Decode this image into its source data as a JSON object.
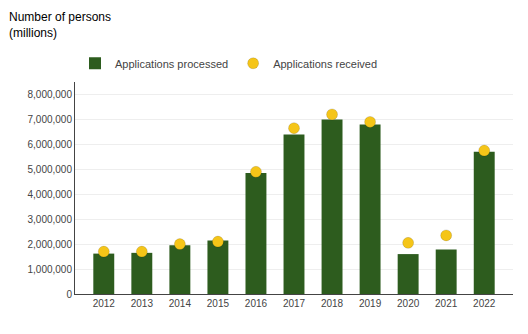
{
  "chart_data": {
    "type": "bar",
    "annotations": [
      "Number of persons",
      "(millions)"
    ],
    "categories": [
      "2012",
      "2013",
      "2014",
      "2015",
      "2016",
      "2017",
      "2018",
      "2019",
      "2020",
      "2021",
      "2022"
    ],
    "series": [
      {
        "name": "Applications processed",
        "type": "bar",
        "color": "#2d5c1e",
        "values": [
          1620000,
          1650000,
          1950000,
          2150000,
          4850000,
          6400000,
          7000000,
          6800000,
          1600000,
          1780000,
          5700000
        ]
      },
      {
        "name": "Applications received",
        "type": "scatter",
        "color": "#f5c518",
        "marker": "circle",
        "values": [
          1700000,
          1700000,
          2000000,
          2100000,
          4900000,
          6650000,
          7200000,
          6900000,
          2050000,
          2350000,
          5750000
        ]
      }
    ],
    "ylim": [
      0,
      8500000
    ],
    "yticks": [
      0,
      {
        "value": 1000000,
        "label": "1,000,000"
      },
      {
        "value": 2000000,
        "label": "2,000,000"
      },
      {
        "value": 3000000,
        "label": "3,000,000"
      },
      {
        "value": 4000000,
        "label": "4,000,000"
      },
      {
        "value": 5000000,
        "label": "5,000,000"
      },
      {
        "value": 6000000,
        "label": "6,000,000"
      },
      {
        "value": 7000000,
        "label": "7,000,000"
      },
      {
        "value": 8000000,
        "label": "8,000,000"
      }
    ],
    "grid": true,
    "legend": "top"
  }
}
